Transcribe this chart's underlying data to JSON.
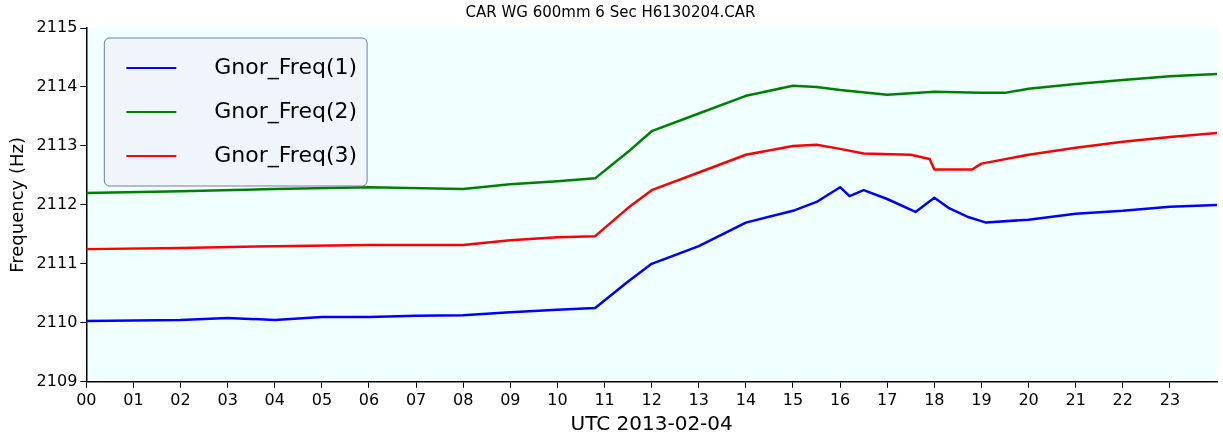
{
  "chart_data": {
    "type": "line",
    "title": "CAR WG 600mm 6 Sec H6130204.CAR",
    "xlabel": "UTC 2013-02-04",
    "ylabel": "Frequency (Hz)",
    "xlim": [
      0,
      24
    ],
    "xticks": [
      {
        "value": 0,
        "label": "00"
      },
      {
        "value": 1,
        "label": "01"
      },
      {
        "value": 2,
        "label": "02"
      },
      {
        "value": 3,
        "label": "03"
      },
      {
        "value": 4,
        "label": "04"
      },
      {
        "value": 5,
        "label": "05"
      },
      {
        "value": 6,
        "label": "06"
      },
      {
        "value": 7,
        "label": "07"
      },
      {
        "value": 8,
        "label": "08"
      },
      {
        "value": 9,
        "label": "09"
      },
      10,
      11,
      12,
      13,
      14,
      15,
      16,
      17,
      18,
      19,
      20,
      21,
      22,
      23
    ],
    "ylim": [
      2109,
      2115
    ],
    "yticks": [
      2109,
      2110,
      2111,
      2112,
      2113,
      2114,
      2115
    ],
    "grid": false,
    "legend": "top left",
    "marker": "none",
    "line_style": "solid",
    "series": [
      {
        "name": "Gnor_Freq(1)",
        "color": "#0000ff",
        "x": [
          0,
          2,
          3,
          4,
          5,
          6,
          7,
          8,
          9,
          10,
          10.8,
          11.5,
          12,
          13,
          14,
          15,
          15.5,
          16,
          16.2,
          16.5,
          17,
          17.6,
          18,
          18.3,
          18.7,
          19.1,
          20,
          21,
          22,
          23,
          24
        ],
        "values": [
          2110.03,
          2110.05,
          2110.08,
          2110.05,
          2110.1,
          2110.1,
          2110.12,
          2110.13,
          2110.18,
          2110.22,
          2110.25,
          2110.7,
          2111.0,
          2111.3,
          2111.7,
          2111.9,
          2112.05,
          2112.3,
          2112.15,
          2112.25,
          2112.1,
          2111.88,
          2112.12,
          2111.95,
          2111.8,
          2111.7,
          2111.75,
          2111.85,
          2111.9,
          2111.97,
          2112.0
        ]
      },
      {
        "name": "Gnor_Freq(2)",
        "color": "#008000",
        "x": [
          0,
          2,
          4,
          6,
          8,
          9,
          10,
          10.8,
          11.5,
          12,
          13,
          14,
          15,
          15.5,
          16,
          17,
          18,
          19,
          19.5,
          20,
          21,
          22,
          23,
          24
        ],
        "values": [
          2112.2,
          2112.23,
          2112.27,
          2112.3,
          2112.27,
          2112.35,
          2112.4,
          2112.45,
          2112.9,
          2113.25,
          2113.55,
          2113.85,
          2114.02,
          2114.0,
          2113.95,
          2113.87,
          2113.92,
          2113.9,
          2113.9,
          2113.97,
          2114.05,
          2114.12,
          2114.18,
          2114.22
        ]
      },
      {
        "name": "Gnor_Freq(3)",
        "color": "#ff0000",
        "x": [
          0,
          2,
          4,
          6,
          8,
          9,
          10,
          10.8,
          11.5,
          12,
          13,
          14,
          15,
          15.5,
          16,
          16.5,
          17.5,
          17.9,
          18,
          18.8,
          19,
          20,
          21,
          22,
          23,
          24
        ],
        "values": [
          2111.25,
          2111.27,
          2111.3,
          2111.32,
          2111.32,
          2111.4,
          2111.45,
          2111.47,
          2111.95,
          2112.25,
          2112.55,
          2112.85,
          2113.0,
          2113.02,
          2112.95,
          2112.87,
          2112.85,
          2112.78,
          2112.6,
          2112.6,
          2112.7,
          2112.85,
          2112.97,
          2113.07,
          2113.15,
          2113.22
        ]
      }
    ]
  }
}
